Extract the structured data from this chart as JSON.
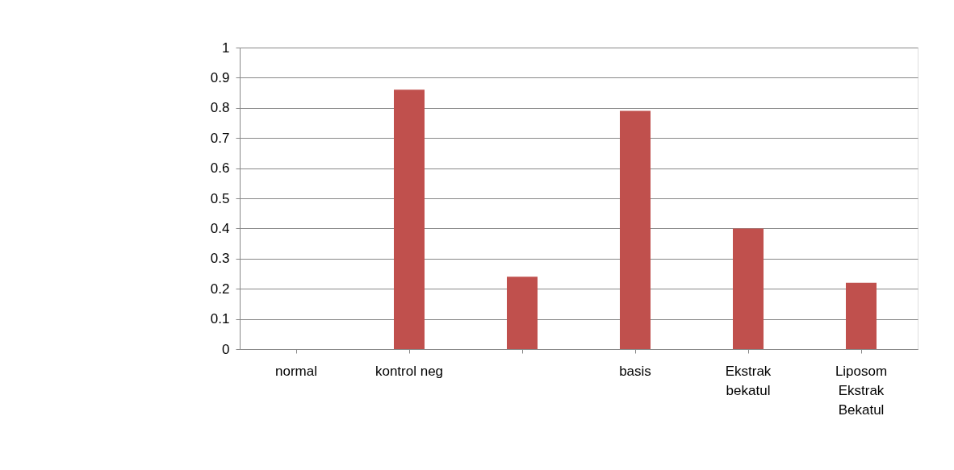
{
  "chart_data": {
    "type": "bar",
    "categories": [
      "normal",
      "kontrol neg",
      null,
      "basis",
      "Ekstrak\nbekatul",
      "Liposom\nEkstrak\nBekatul"
    ],
    "values": [
      0,
      0.86,
      0.24,
      0.79,
      0.4,
      0.22
    ],
    "color": "#c0504d",
    "ylim": [
      0,
      1
    ],
    "yticks": [
      0,
      0.1,
      0.2,
      0.3,
      0.4,
      0.5,
      0.6,
      0.7,
      0.8,
      0.9,
      1
    ],
    "grid": "y"
  }
}
